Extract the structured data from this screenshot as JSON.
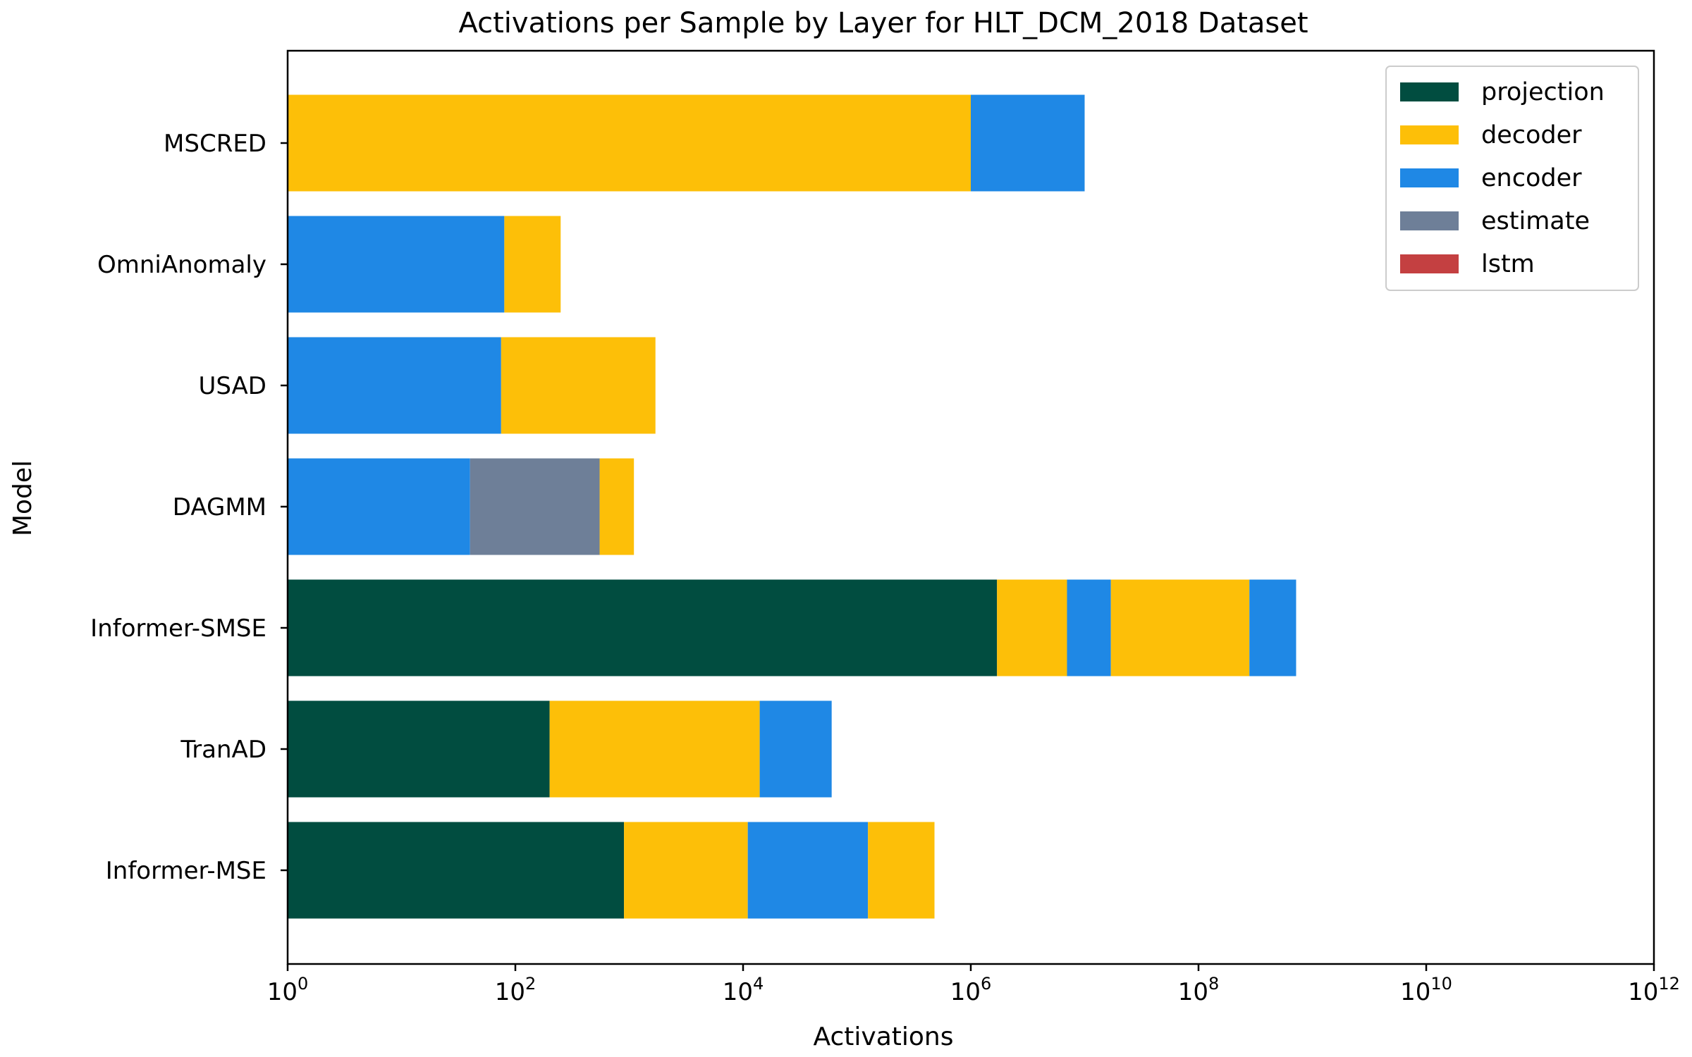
{
  "chart_data": {
    "type": "bar",
    "orientation": "horizontal",
    "stacked": true,
    "title": "Activations per Sample by Layer for HLT_DCM_2018 Dataset",
    "xlabel": "Activations",
    "ylabel": "Model",
    "xscale": "log",
    "xlim": [
      1,
      1000000000000
    ],
    "x_ticks": [
      {
        "base": "10",
        "exp": "0"
      },
      {
        "base": "10",
        "exp": "2"
      },
      {
        "base": "10",
        "exp": "4"
      },
      {
        "base": "10",
        "exp": "6"
      },
      {
        "base": "10",
        "exp": "8"
      },
      {
        "base": "10",
        "exp": "10"
      },
      {
        "base": "10",
        "exp": "12"
      }
    ],
    "grid": false,
    "legend_position": "top-right",
    "legend": [
      {
        "name": "projection",
        "color": "#014d40"
      },
      {
        "name": "decoder",
        "color": "#fdbf08"
      },
      {
        "name": "encoder",
        "color": "#1f88e5"
      },
      {
        "name": "estimate",
        "color": "#6e7f98"
      },
      {
        "name": "lstm",
        "color": "#c44041"
      }
    ],
    "categories": [
      "MSCRED",
      "OmniAnomaly",
      "USAD",
      "DAGMM",
      "Informer-SMSE",
      "TranAD",
      "Informer-MSE"
    ],
    "bars": [
      {
        "model": "MSCRED",
        "segments": [
          {
            "layer": "decoder",
            "start": 1,
            "end": 1000000
          },
          {
            "layer": "encoder",
            "end": 10000000
          }
        ]
      },
      {
        "model": "OmniAnomaly",
        "segments": [
          {
            "layer": "encoder",
            "start": 1,
            "end": 80
          },
          {
            "layer": "decoder",
            "end": 250
          }
        ]
      },
      {
        "model": "USAD",
        "segments": [
          {
            "layer": "encoder",
            "start": 1,
            "end": 75
          },
          {
            "layer": "decoder",
            "end": 1700
          }
        ]
      },
      {
        "model": "DAGMM",
        "segments": [
          {
            "layer": "encoder",
            "start": 1,
            "end": 40
          },
          {
            "layer": "estimate",
            "end": 550
          },
          {
            "layer": "decoder",
            "end": 1100
          }
        ]
      },
      {
        "model": "Informer-SMSE",
        "segments": [
          {
            "layer": "projection",
            "start": 1,
            "end": 1700000
          },
          {
            "layer": "decoder",
            "end": 7000000
          },
          {
            "layer": "encoder",
            "end": 17000000
          },
          {
            "layer": "decoder",
            "end": 280000000
          },
          {
            "layer": "encoder",
            "end": 720000000
          }
        ]
      },
      {
        "model": "TranAD",
        "segments": [
          {
            "layer": "projection",
            "start": 1,
            "end": 200
          },
          {
            "layer": "decoder",
            "end": 14000
          },
          {
            "layer": "encoder",
            "end": 60000
          }
        ]
      },
      {
        "model": "Informer-MSE",
        "segments": [
          {
            "layer": "projection",
            "start": 1,
            "end": 900
          },
          {
            "layer": "decoder",
            "end": 11000
          },
          {
            "layer": "encoder",
            "end": 125000
          },
          {
            "layer": "decoder",
            "end": 480000
          }
        ]
      }
    ]
  }
}
